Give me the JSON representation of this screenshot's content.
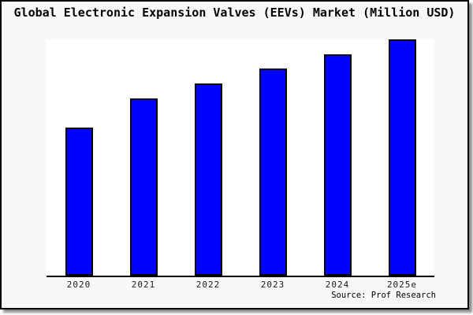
{
  "title": "Global Electronic Expansion Valves (EEVs) Market (Million USD)",
  "source_note": "Source: Prof Research",
  "colors": {
    "bar_fill": "#0000ff",
    "bar_border": "#000000",
    "figure_background": "#f8f8f8",
    "plot_background": "#ffffff",
    "axis_line": "#000000",
    "text": "#000000"
  },
  "chart_data": {
    "type": "bar",
    "title": "Global Electronic Expansion Valves (EEVs) Market (Million USD)",
    "categories": [
      "2020",
      "2021",
      "2022",
      "2023",
      "2024",
      "2025e"
    ],
    "values": [
      188,
      225,
      244,
      263,
      281,
      300
    ],
    "values_note": "relative bar heights in pixels; no numeric y-axis scale is shown in the figure",
    "ylim": [
      0,
      300
    ],
    "xlabel": "",
    "ylabel": "",
    "grid": false,
    "legend": false,
    "source": "Source: Prof Research"
  }
}
